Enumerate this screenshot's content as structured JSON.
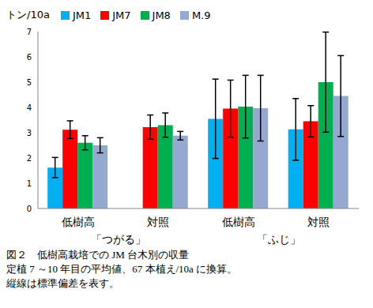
{
  "chart_data": {
    "type": "bar",
    "y_label": "トン/10a",
    "categories": [
      "低樹高",
      "対照",
      "低樹高",
      "対照"
    ],
    "groups": [
      {
        "label": "「つがる」",
        "span": 2
      },
      {
        "label": "「ふじ」",
        "span": 2
      }
    ],
    "series": [
      {
        "name": "JM1",
        "color": "#00b0f0",
        "values": [
          1.62,
          null,
          3.55,
          3.13
        ],
        "errors": [
          0.4,
          null,
          1.57,
          1.22
        ]
      },
      {
        "name": "JM7",
        "color": "#ff0000",
        "values": [
          3.12,
          3.22,
          3.95,
          3.45
        ],
        "errors": [
          0.35,
          0.48,
          1.13,
          0.62
        ]
      },
      {
        "name": "JM8",
        "color": "#00b050",
        "values": [
          2.6,
          3.3,
          4.03,
          5.0
        ],
        "errors": [
          0.28,
          0.48,
          1.24,
          1.98
        ]
      },
      {
        "name": "M.9",
        "color": "#95a9d0",
        "values": [
          2.5,
          2.88,
          3.97,
          4.45
        ],
        "errors": [
          0.3,
          0.17,
          1.3,
          1.6
        ]
      }
    ],
    "ylim": [
      0,
      7
    ],
    "yticks": [
      0,
      1,
      2,
      3,
      4,
      5,
      6,
      7
    ],
    "grid": false,
    "caption": [
      "図２　低樹高栽培での JM 台木別の収量",
      "定植 7 ～10 年目の平均値、67 本植え/10a に換算。",
      "縦線は標準偏差を表す。"
    ]
  }
}
